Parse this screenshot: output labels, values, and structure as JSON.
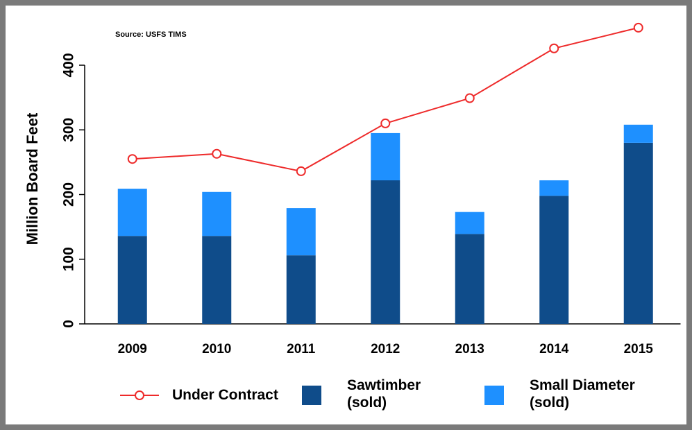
{
  "chart_data": {
    "type": "bar",
    "stacked": true,
    "annotation": "Source: USFS TIMS",
    "y_label": "Million Board Feet",
    "categories": [
      "2009",
      "2010",
      "2011",
      "2012",
      "2013",
      "2014",
      "2015"
    ],
    "series": [
      {
        "name": "Under Contract",
        "type": "line",
        "color": "#ee2a2a",
        "values": [
          255,
          263,
          236,
          310,
          349,
          426,
          458
        ]
      },
      {
        "name": "Sawtimber (sold)",
        "type": "bar",
        "color": "#0f4c8a",
        "values": [
          136,
          136,
          106,
          222,
          139,
          198,
          280
        ]
      },
      {
        "name": "Small Diameter (sold)",
        "type": "bar",
        "color": "#1e90ff",
        "values": [
          73,
          68,
          73,
          73,
          34,
          24,
          28
        ]
      }
    ],
    "ylim": [
      0,
      460
    ],
    "yticks": [
      0,
      100,
      200,
      300,
      400
    ],
    "grid": false
  }
}
